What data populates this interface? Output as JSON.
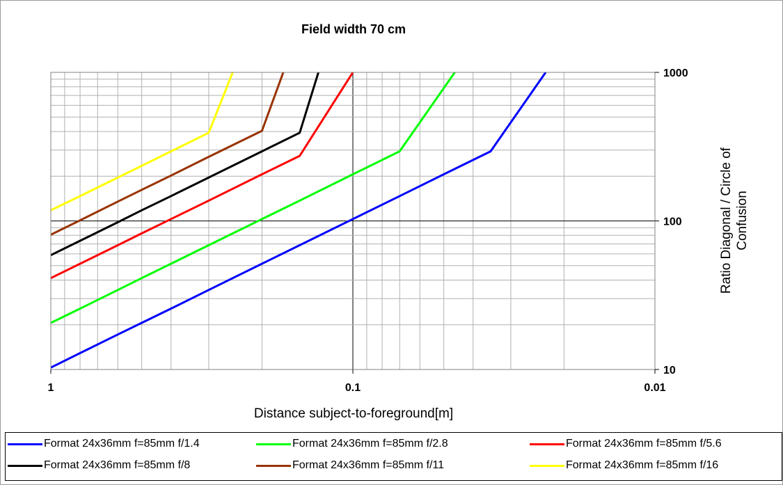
{
  "chart_data": {
    "type": "line",
    "title": "Field width  70 cm",
    "xlabel": "Distance subject-to-foreground[m]",
    "ylabel": "Ratio Diagonal / Circle of Confusion",
    "x_scale": "log",
    "x_reversed": true,
    "y_scale": "log",
    "xlim": [
      1,
      0.01
    ],
    "ylim": [
      10,
      1000
    ],
    "x_ticks": [
      "1",
      "0.1",
      "0.01"
    ],
    "y_ticks": [
      "10",
      "100",
      "1000"
    ],
    "grid": true,
    "legend_position": "bottom",
    "series": [
      {
        "name": "Format 24x36mm  f=85mm  f/1.4",
        "color": "#0000ff",
        "x": [
          1,
          0.8,
          0.6,
          0.5,
          0.4,
          0.3,
          0.2,
          0.15,
          0.1,
          0.07,
          0.05,
          0.035,
          0.023
        ],
        "y": [
          10.3,
          12.9,
          17.2,
          20.6,
          25.7,
          34.3,
          51.5,
          68.6,
          103,
          147,
          206,
          294,
          1000
        ]
      },
      {
        "name": "Format 24x36mm  f=85mm  f/2.8",
        "color": "#00ff00",
        "x": [
          1,
          0.8,
          0.6,
          0.5,
          0.4,
          0.3,
          0.2,
          0.15,
          0.1,
          0.07,
          0.046
        ],
        "y": [
          20.6,
          25.7,
          34.3,
          41.2,
          51.5,
          68.6,
          103,
          137,
          206,
          294,
          1000
        ]
      },
      {
        "name": "Format 24x36mm  f=85mm  f/5.6",
        "color": "#ff0000",
        "x": [
          1,
          0.8,
          0.6,
          0.5,
          0.4,
          0.3,
          0.2,
          0.15,
          0.1
        ],
        "y": [
          41.2,
          51.5,
          68.6,
          82.4,
          103,
          137,
          206,
          274,
          1000
        ]
      },
      {
        "name": "Format 24x36mm  f=85mm  f/8",
        "color": "#000000",
        "x": [
          1,
          0.8,
          0.6,
          0.5,
          0.4,
          0.3,
          0.2,
          0.15,
          0.13
        ],
        "y": [
          58.8,
          73.5,
          98,
          118,
          147,
          196,
          294,
          392,
          1000
        ]
      },
      {
        "name": "Format 24x36mm  f=85mm  f/11",
        "color": "#993300",
        "x": [
          1,
          0.8,
          0.6,
          0.5,
          0.4,
          0.3,
          0.2,
          0.17
        ],
        "y": [
          80.8,
          101,
          135,
          162,
          202,
          270,
          404,
          1000
        ]
      },
      {
        "name": "Format 24x36mm  f=85mm  f/16",
        "color": "#ffff00",
        "x": [
          1,
          0.8,
          0.6,
          0.5,
          0.4,
          0.3,
          0.25
        ],
        "y": [
          118,
          147,
          196,
          235,
          294,
          392,
          1000
        ]
      }
    ]
  }
}
